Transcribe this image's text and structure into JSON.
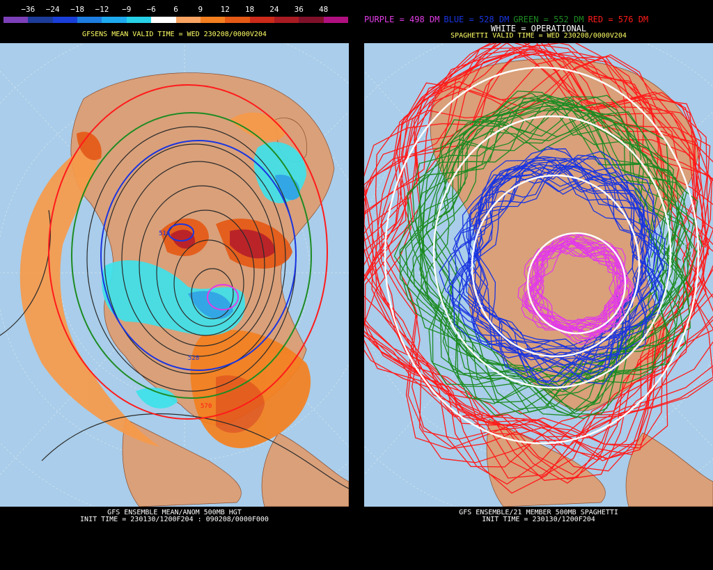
{
  "left": {
    "colorbar": {
      "labels": [
        "−36",
        "−24",
        "−18",
        "−12",
        "−9",
        "−6",
        "6",
        "9",
        "12",
        "18",
        "24",
        "36",
        "48"
      ],
      "colors": [
        "#7d3fb8",
        "#1d3b99",
        "#1a3fd9",
        "#1d7de0",
        "#1fa9ee",
        "#27d2e8",
        "#ffffff",
        "#f9a463",
        "#f47f21",
        "#e55a16",
        "#cc2a1a",
        "#a91b22",
        "#7e1129",
        "#b0107f"
      ]
    },
    "subtitle": "GFSENS MEAN VALID TIME = WED 230208/0000V204",
    "caption_line1": "GFS ENSEMBLE MEAN/ANOM 500MB HGT",
    "caption_line2": "INIT TIME = 230130/1200F204 : 090208/0000F000",
    "contour_labels": [
      "516",
      "528",
      "570"
    ]
  },
  "right": {
    "legend": {
      "purple": "PURPLE = 498 DM",
      "blue": "BLUE = 528 DM",
      "green": "GREEN = 552 DM",
      "red": "RED = 576 DM",
      "white": "WHITE = OPERATIONAL"
    },
    "subtitle": "SPAGHETTI VALID TIME = WED 230208/0000V204",
    "caption_line1": "GFS ENSEMBLE/21 MEMBER 500MB SPAGHETTI",
    "caption_line2": "INIT TIME = 230130/1200F204"
  },
  "colors": {
    "ocean": "#a9cdea",
    "land": "#d9a07a",
    "purple": "#e23ce6",
    "blue": "#1a35e0",
    "green": "#1d8b22",
    "red": "#ff1a1a",
    "white": "#ffffff"
  }
}
